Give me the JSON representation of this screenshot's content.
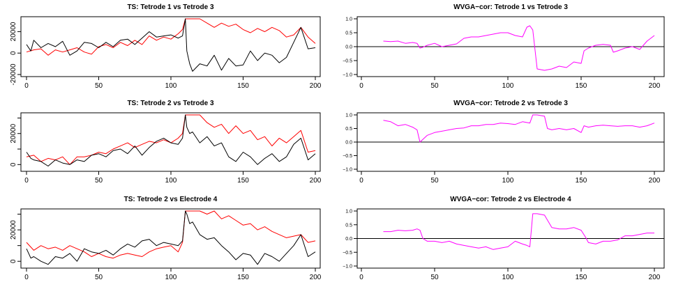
{
  "chart_data": [
    {
      "type": "line",
      "title": "TS: Tetrode 1 vs Tetrode 3",
      "xlim": [
        0,
        200
      ],
      "ylim": [
        -20000,
        32000
      ],
      "xticks": [
        0,
        50,
        100,
        150,
        200
      ],
      "yticks": [
        -20000,
        0,
        20000
      ],
      "ytick_labels": [
        "-20000",
        "0",
        "20000"
      ],
      "series": [
        {
          "color": "#ff0000",
          "x": [
            0,
            5,
            10,
            15,
            20,
            25,
            30,
            35,
            40,
            45,
            50,
            55,
            60,
            65,
            70,
            75,
            80,
            85,
            90,
            95,
            100,
            105,
            108,
            110,
            115,
            120,
            125,
            130,
            135,
            140,
            145,
            150,
            155,
            160,
            165,
            170,
            175,
            180,
            185,
            190,
            195,
            200
          ],
          "y": [
            1000,
            3000,
            4000,
            -2000,
            3000,
            1000,
            3000,
            5000,
            1000,
            -1000,
            6000,
            8000,
            5000,
            10000,
            7000,
            12000,
            8000,
            16000,
            12000,
            15000,
            13000,
            18000,
            22000,
            32000,
            32000,
            32000,
            28000,
            24000,
            28000,
            25000,
            27000,
            22000,
            19000,
            23000,
            20000,
            24000,
            21000,
            15000,
            17000,
            24000,
            15000,
            9000
          ]
        },
        {
          "color": "#000000",
          "x": [
            0,
            3,
            5,
            10,
            15,
            20,
            25,
            30,
            35,
            40,
            45,
            50,
            55,
            60,
            65,
            70,
            75,
            80,
            85,
            90,
            95,
            100,
            105,
            108,
            110,
            111,
            113,
            115,
            120,
            125,
            130,
            135,
            140,
            145,
            150,
            155,
            160,
            165,
            170,
            175,
            180,
            185,
            190,
            195,
            200
          ],
          "y": [
            8000,
            2000,
            12000,
            5000,
            9000,
            6000,
            11000,
            -2000,
            2000,
            10000,
            9000,
            5000,
            10000,
            6000,
            12000,
            13000,
            8000,
            14000,
            20000,
            15000,
            16000,
            17000,
            14000,
            16000,
            32000,
            2000,
            -10000,
            -17000,
            -10000,
            -12000,
            -2000,
            -16000,
            -5000,
            -12000,
            -11000,
            2000,
            -7000,
            0,
            -2000,
            -9000,
            -4000,
            10000,
            24000,
            4000,
            5000
          ]
        }
      ]
    },
    {
      "type": "line",
      "title": "WVGA−cor: Tetrode 1 vs Tetrode 3",
      "xlim": [
        0,
        200
      ],
      "ylim": [
        -1.0,
        1.0
      ],
      "xticks": [
        0,
        50,
        100,
        150,
        200
      ],
      "yticks": [
        -1.0,
        -0.5,
        0.0,
        0.5,
        1.0
      ],
      "ytick_labels": [
        "−1.0",
        "−0.5",
        "0.0",
        "0.5",
        "1.0"
      ],
      "hline": 0,
      "series": [
        {
          "color": "#ff00ff",
          "x": [
            15,
            20,
            25,
            30,
            35,
            38,
            40,
            42,
            45,
            50,
            55,
            60,
            65,
            70,
            75,
            80,
            85,
            90,
            95,
            100,
            105,
            110,
            113,
            115,
            117,
            120,
            125,
            130,
            135,
            140,
            145,
            150,
            152,
            155,
            160,
            165,
            170,
            172,
            175,
            180,
            185,
            190,
            195,
            200
          ],
          "y": [
            0.2,
            0.18,
            0.2,
            0.12,
            0.15,
            0.12,
            -0.05,
            -0.02,
            0.05,
            0.12,
            0.0,
            0.05,
            0.1,
            0.3,
            0.35,
            0.35,
            0.4,
            0.45,
            0.5,
            0.5,
            0.4,
            0.35,
            0.7,
            0.75,
            0.6,
            -0.8,
            -0.85,
            -0.8,
            -0.7,
            -0.75,
            -0.55,
            -0.6,
            -0.15,
            -0.05,
            0.05,
            0.08,
            0.05,
            -0.2,
            -0.15,
            -0.05,
            0.0,
            -0.1,
            0.2,
            0.4
          ]
        }
      ]
    },
    {
      "type": "line",
      "title": "TS: Tetrode 2 vs Tetrode 3",
      "xlim": [
        0,
        200
      ],
      "ylim": [
        -3000,
        32000
      ],
      "xticks": [
        0,
        50,
        100,
        150,
        200
      ],
      "yticks": [
        0,
        10000,
        20000,
        30000
      ],
      "ytick_labels": [
        "0",
        "",
        "20000",
        ""
      ],
      "series": [
        {
          "color": "#ff0000",
          "x": [
            0,
            5,
            10,
            15,
            20,
            25,
            30,
            35,
            40,
            45,
            50,
            55,
            60,
            65,
            70,
            75,
            80,
            85,
            90,
            95,
            100,
            105,
            108,
            110,
            115,
            120,
            125,
            130,
            135,
            140,
            145,
            150,
            155,
            160,
            165,
            170,
            175,
            180,
            185,
            190,
            195,
            200
          ],
          "y": [
            5000,
            6000,
            2000,
            4000,
            3000,
            5000,
            0,
            5000,
            5000,
            6000,
            8000,
            7000,
            10000,
            12000,
            14000,
            11000,
            13000,
            15000,
            14000,
            16000,
            14000,
            17000,
            20000,
            32000,
            32000,
            32000,
            27000,
            24000,
            26000,
            20000,
            25000,
            20000,
            22000,
            16000,
            18000,
            12000,
            17000,
            14000,
            18000,
            22000,
            8000,
            9000
          ]
        },
        {
          "color": "#000000",
          "x": [
            0,
            3,
            5,
            10,
            15,
            20,
            25,
            30,
            35,
            40,
            45,
            50,
            55,
            60,
            65,
            70,
            75,
            80,
            85,
            90,
            95,
            100,
            105,
            108,
            110,
            111,
            113,
            115,
            120,
            125,
            130,
            135,
            140,
            145,
            150,
            155,
            160,
            165,
            170,
            175,
            180,
            185,
            190,
            195,
            200
          ],
          "y": [
            8000,
            4000,
            3000,
            2000,
            -1000,
            3000,
            1000,
            0,
            3000,
            2000,
            6000,
            7000,
            5000,
            9000,
            10000,
            7000,
            12000,
            6000,
            11000,
            15000,
            17000,
            14000,
            13000,
            17000,
            32000,
            24000,
            20000,
            21000,
            14000,
            18000,
            12000,
            14000,
            5000,
            2000,
            8000,
            5000,
            0,
            4000,
            7000,
            2000,
            5000,
            13000,
            17000,
            3000,
            7000
          ]
        }
      ]
    },
    {
      "type": "line",
      "title": "WVGA−cor: Tetrode 2 vs Tetrode 3",
      "xlim": [
        0,
        200
      ],
      "ylim": [
        -1.0,
        1.0
      ],
      "xticks": [
        0,
        50,
        100,
        150,
        200
      ],
      "yticks": [
        -1.0,
        -0.5,
        0.0,
        0.5,
        1.0
      ],
      "ytick_labels": [
        "−1.0",
        "−0.5",
        "0.0",
        "0.5",
        "1.0"
      ],
      "hline": 0,
      "series": [
        {
          "color": "#ff00ff",
          "x": [
            15,
            20,
            25,
            30,
            35,
            38,
            40,
            42,
            45,
            50,
            55,
            60,
            65,
            70,
            75,
            80,
            85,
            90,
            95,
            100,
            105,
            110,
            115,
            117,
            120,
            125,
            127,
            130,
            135,
            140,
            145,
            150,
            152,
            155,
            160,
            165,
            170,
            175,
            180,
            185,
            190,
            195,
            200
          ],
          "y": [
            0.8,
            0.75,
            0.6,
            0.65,
            0.55,
            0.45,
            0.0,
            0.1,
            0.25,
            0.35,
            0.4,
            0.45,
            0.5,
            0.52,
            0.6,
            0.6,
            0.65,
            0.65,
            0.7,
            0.68,
            0.65,
            0.75,
            0.7,
            1.0,
            1.0,
            0.95,
            0.5,
            0.45,
            0.5,
            0.45,
            0.5,
            0.35,
            0.6,
            0.55,
            0.6,
            0.62,
            0.6,
            0.58,
            0.6,
            0.6,
            0.55,
            0.6,
            0.7
          ]
        }
      ]
    },
    {
      "type": "line",
      "title": "TS: Tetrode 2 vs Electrode 4",
      "xlim": [
        0,
        200
      ],
      "ylim": [
        -3000,
        32000
      ],
      "xticks": [
        0,
        50,
        100,
        150,
        200
      ],
      "yticks": [
        0,
        10000,
        20000,
        30000
      ],
      "ytick_labels": [
        "0",
        "",
        "20000",
        ""
      ],
      "series": [
        {
          "color": "#ff0000",
          "x": [
            0,
            5,
            10,
            15,
            20,
            25,
            30,
            35,
            40,
            45,
            50,
            55,
            60,
            65,
            70,
            75,
            80,
            85,
            90,
            95,
            100,
            105,
            108,
            110,
            115,
            120,
            125,
            130,
            135,
            140,
            145,
            150,
            155,
            160,
            165,
            170,
            175,
            180,
            185,
            190,
            195,
            200
          ],
          "y": [
            12000,
            7000,
            10000,
            8000,
            9000,
            7000,
            10000,
            8000,
            6000,
            3000,
            5000,
            3000,
            2000,
            4000,
            5000,
            4000,
            3000,
            6000,
            8000,
            9000,
            10000,
            6000,
            12000,
            32000,
            32000,
            32000,
            30000,
            32000,
            27000,
            29000,
            26000,
            23000,
            24000,
            20000,
            22000,
            19000,
            17000,
            15000,
            16000,
            17000,
            12000,
            13000
          ]
        },
        {
          "color": "#000000",
          "x": [
            0,
            3,
            5,
            10,
            15,
            20,
            25,
            30,
            35,
            40,
            45,
            50,
            55,
            60,
            65,
            70,
            75,
            80,
            85,
            90,
            95,
            100,
            105,
            108,
            110,
            111,
            113,
            115,
            120,
            125,
            130,
            135,
            140,
            145,
            150,
            155,
            160,
            165,
            170,
            175,
            180,
            185,
            190,
            195,
            200
          ],
          "y": [
            8000,
            2000,
            3000,
            0,
            -2000,
            3000,
            2000,
            5000,
            0,
            8000,
            6000,
            5000,
            7000,
            4000,
            8000,
            11000,
            9000,
            13000,
            14000,
            10000,
            12000,
            11000,
            10000,
            13000,
            32000,
            30000,
            24000,
            25000,
            17000,
            14000,
            15000,
            10000,
            6000,
            1000,
            5000,
            4000,
            -2000,
            5000,
            3000,
            0,
            5000,
            10000,
            17000,
            3000,
            6000
          ]
        }
      ]
    },
    {
      "type": "line",
      "title": "WVGA−cor: Tetrode 2 vs Electrode 4",
      "xlim": [
        0,
        200
      ],
      "ylim": [
        -1.0,
        1.0
      ],
      "xticks": [
        0,
        50,
        100,
        150,
        200
      ],
      "yticks": [
        -1.0,
        -0.5,
        0.0,
        0.5,
        1.0
      ],
      "ytick_labels": [
        "−1.0",
        "−0.5",
        "0.0",
        "0.5",
        "1.0"
      ],
      "hline": 0,
      "series": [
        {
          "color": "#ff00ff",
          "x": [
            15,
            20,
            25,
            30,
            35,
            38,
            40,
            42,
            45,
            50,
            55,
            60,
            65,
            70,
            75,
            80,
            85,
            90,
            95,
            100,
            105,
            110,
            113,
            115,
            117,
            120,
            125,
            130,
            135,
            140,
            145,
            150,
            153,
            155,
            160,
            165,
            170,
            175,
            180,
            185,
            190,
            195,
            200
          ],
          "y": [
            0.25,
            0.25,
            0.3,
            0.28,
            0.3,
            0.35,
            0.3,
            0.0,
            -0.1,
            -0.1,
            -0.15,
            -0.1,
            -0.2,
            -0.25,
            -0.3,
            -0.35,
            -0.3,
            -0.4,
            -0.35,
            -0.3,
            -0.1,
            -0.2,
            -0.25,
            -0.3,
            0.9,
            0.9,
            0.85,
            0.4,
            0.35,
            0.35,
            0.4,
            0.3,
            0.05,
            -0.15,
            -0.2,
            -0.1,
            -0.1,
            -0.05,
            0.1,
            0.1,
            0.15,
            0.2,
            0.2
          ]
        }
      ]
    }
  ]
}
